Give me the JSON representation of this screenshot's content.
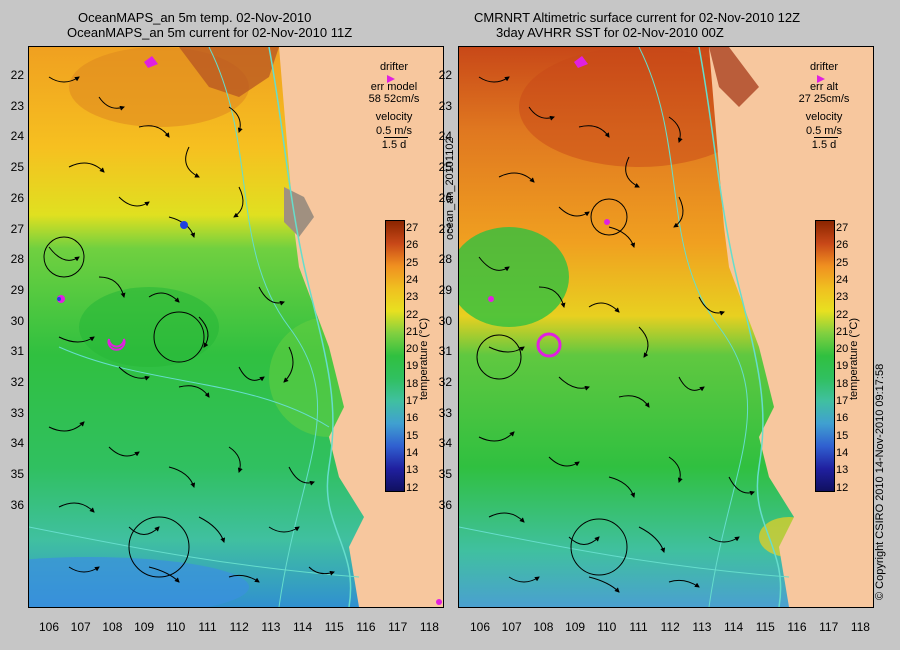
{
  "left_panel": {
    "title_line1": "OceanMAPS_an 5m temp. 02-Nov-2010",
    "title_line2": "OceanMAPS_an 5m current for 02-Nov-2010 11Z",
    "legend": {
      "drifter": "drifter",
      "err_label": "err model",
      "err_value": "58 52cm/s",
      "velocity": "velocity",
      "vel_scale": "0.5 m/s",
      "duration": "1.5 d"
    }
  },
  "right_panel": {
    "title_line1": "CMRNRT Altimetric surface current for 02-Nov-2010 12Z",
    "title_line2": "3day AVHRR SST for 02-Nov-2010 00Z",
    "legend": {
      "drifter": "drifter",
      "err_label": "err alt",
      "err_value": "27 25cm/s",
      "velocity": "velocity",
      "vel_scale": "0.5 m/s",
      "duration": "1.5 d"
    }
  },
  "center_label": "ocean_an_20101102",
  "copyright": "© Copyright CSIRO 2010   14-Nov-2010 09:17:58",
  "colorbar": {
    "label": "temperature (°C)",
    "ticks": [
      "27",
      "26",
      "25",
      "24",
      "23",
      "22",
      "21",
      "20",
      "19",
      "18",
      "17",
      "16",
      "15",
      "14",
      "13",
      "12"
    ]
  },
  "lat_ticks": [
    "22",
    "23",
    "24",
    "25",
    "26",
    "27",
    "28",
    "29",
    "30",
    "31",
    "32",
    "33",
    "34",
    "35",
    "36"
  ],
  "lon_ticks": [
    "106",
    "107",
    "108",
    "109",
    "110",
    "111",
    "112",
    "113",
    "114",
    "115",
    "116",
    "117",
    "118"
  ],
  "colors": {
    "land": "#f7c79e",
    "coast": "#66ddcc",
    "drifter": "#e020e0",
    "background": "#c6c6c6"
  }
}
